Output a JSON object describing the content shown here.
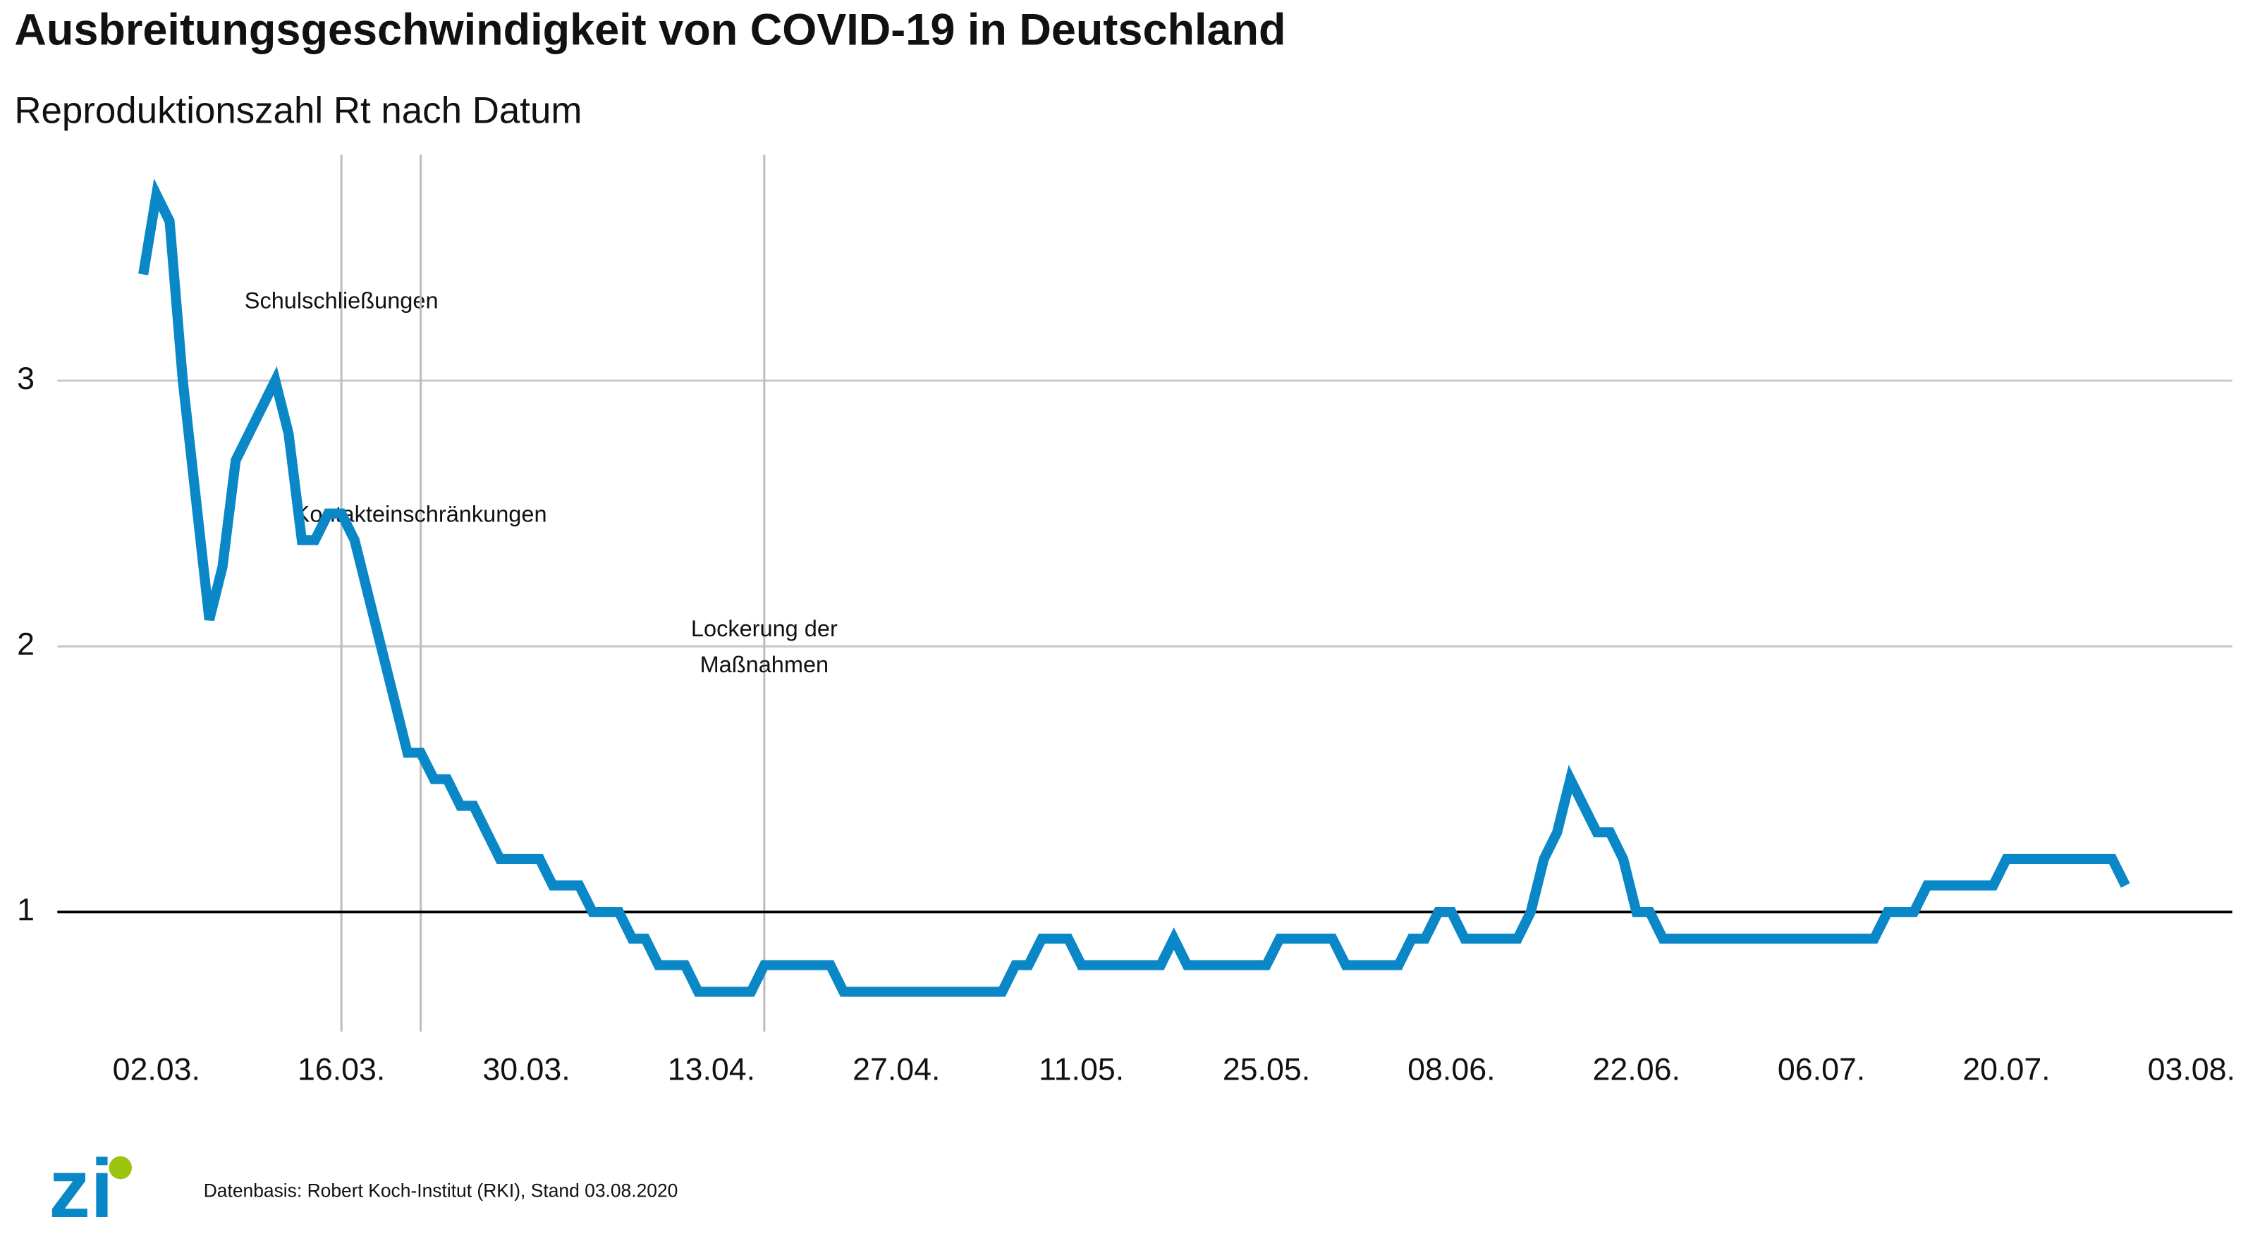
{
  "chart_data": {
    "type": "line",
    "title": "Ausbreitungsgeschwindigkeit von COVID-19 in Deutschland",
    "subtitle": "Reproduktionszahl Rt nach Datum",
    "source": "Datenbasis: Robert Koch-Institut (RKI), Stand 03.08.2020",
    "logo": "zi",
    "x": [
      "01.03.",
      "02.03.",
      "03.03.",
      "04.03.",
      "06.03.",
      "07.03.",
      "08.03.",
      "11.03.",
      "12.03.",
      "13.03.",
      "14.03.",
      "15.03.",
      "16.03.",
      "17.03.",
      "21.03.",
      "22.03.",
      "23.03.",
      "24.03.",
      "25.03.",
      "26.03.",
      "28.03.",
      "31.03.",
      "01.04.",
      "03.04.",
      "04.04.",
      "06.04.",
      "07.04.",
      "08.04.",
      "09.04.",
      "11.04.",
      "12.04.",
      "16.04.",
      "17.04.",
      "22.04.",
      "23.04.",
      "05.05.",
      "06.05.",
      "07.05.",
      "08.05.",
      "10.05.",
      "11.05.",
      "17.05.",
      "18.05.",
      "19.05.",
      "25.05.",
      "26.05.",
      "30.05.",
      "31.05.",
      "04.06.",
      "05.06.",
      "06.06.",
      "07.06.",
      "08.06.",
      "09.06.",
      "13.06.",
      "14.06.",
      "15.06.",
      "16.06.",
      "17.06.",
      "19.06.",
      "20.06.",
      "21.06.",
      "22.06.",
      "23.06.",
      "24.06.",
      "10.07.",
      "11.07.",
      "13.07.",
      "14.07.",
      "19.07.",
      "20.07.",
      "28.07.",
      "29.07."
    ],
    "series": [
      {
        "name": "Rt",
        "color": "#0a87c6",
        "values": [
          3.4,
          3.7,
          3.6,
          3.0,
          2.1,
          2.3,
          2.7,
          3.0,
          2.8,
          2.4,
          2.4,
          2.5,
          2.5,
          2.4,
          1.6,
          1.6,
          1.5,
          1.5,
          1.4,
          1.4,
          1.2,
          1.2,
          1.1,
          1.1,
          1.0,
          1.0,
          0.9,
          0.9,
          0.8,
          0.8,
          0.7,
          0.7,
          0.8,
          0.8,
          0.7,
          0.7,
          0.8,
          0.8,
          0.9,
          0.9,
          0.8,
          0.8,
          0.9,
          0.8,
          0.8,
          0.9,
          0.9,
          0.8,
          0.8,
          0.9,
          0.9,
          1.0,
          1.0,
          0.9,
          0.9,
          1.0,
          1.2,
          1.3,
          1.5,
          1.3,
          1.3,
          1.2,
          1.0,
          1.0,
          0.9,
          0.9,
          1.0,
          1.0,
          1.1,
          1.1,
          1.2,
          1.2,
          1.1
        ]
      }
    ],
    "xlim": [
      "26.02.",
      "05.08."
    ],
    "xticks": [
      "02.03.",
      "16.03.",
      "30.03.",
      "13.04.",
      "27.04.",
      "11.05.",
      "25.05.",
      "08.06.",
      "22.06.",
      "06.07.",
      "20.07.",
      "03.08."
    ],
    "ylim": [
      0.55,
      3.85
    ],
    "yticks": [
      1,
      2,
      3
    ],
    "grid": true,
    "reference_line": 1,
    "annotations": [
      {
        "x": "16.03.",
        "lines": [
          "Schulschließungen"
        ]
      },
      {
        "x": "22.03.",
        "lines": [
          "Kontakteinschränkungen"
        ]
      },
      {
        "x": "17.04.",
        "lines": [
          "Lockerung der",
          "Maßnahmen"
        ]
      }
    ]
  }
}
